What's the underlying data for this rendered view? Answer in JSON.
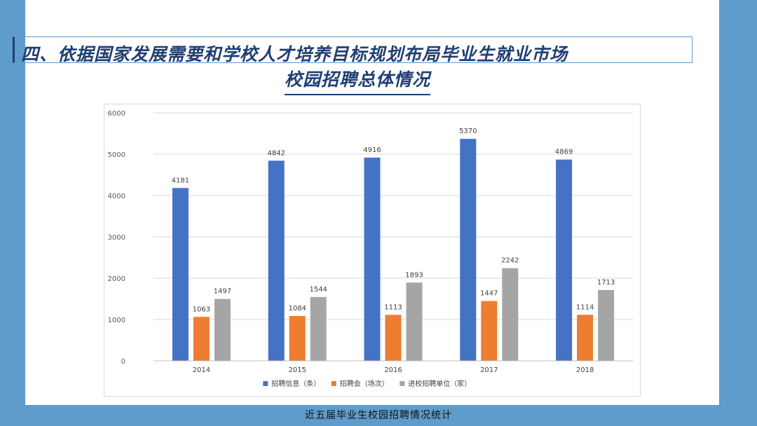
{
  "header": {
    "title_line1": "四、依据国家发展需要和学校人才培养目标规划布局毕业生就业市场",
    "title_line2": "校园招聘总体情况"
  },
  "caption": "近五届毕业生校园招聘情况统计",
  "chart_data": {
    "type": "bar",
    "categories": [
      "2014",
      "2015",
      "2016",
      "2017",
      "2018"
    ],
    "series": [
      {
        "name": "招聘信息（条）",
        "color": "#4472c4",
        "values": [
          4181,
          4842,
          4916,
          5370,
          4869
        ]
      },
      {
        "name": "招聘会（场次）",
        "color": "#ed7d31",
        "values": [
          1063,
          1084,
          1113,
          1447,
          1114
        ]
      },
      {
        "name": "进校招聘单位（家）",
        "color": "#a5a5a5",
        "values": [
          1497,
          1544,
          1893,
          2242,
          1713
        ]
      }
    ],
    "yticks": [
      "0",
      "1000",
      "2000",
      "3000",
      "4000",
      "5000",
      "6000"
    ],
    "ylim": [
      0,
      6000
    ],
    "grid": true,
    "legend": "bottom",
    "data_labels": true
  }
}
